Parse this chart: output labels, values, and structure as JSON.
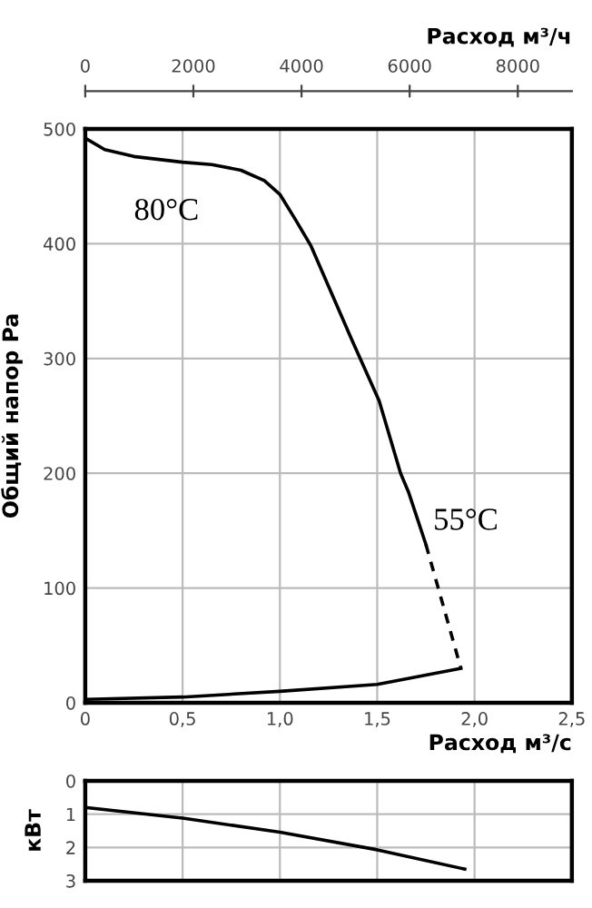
{
  "chart_data": [
    {
      "type": "line",
      "xlabel": "Расход м³/с",
      "ylabel": "Общий напор Pa",
      "x2label": "Расход м³/ч",
      "xlim": [
        0,
        2.5
      ],
      "xticks": [
        0,
        {
          "value": 0.5,
          "label": "0,5"
        },
        {
          "value": 1.0,
          "label": "1,0"
        },
        {
          "value": 1.5,
          "label": "1,5"
        },
        {
          "value": 2.0,
          "label": "2,0"
        },
        {
          "value": 2.5,
          "label": "2,5"
        }
      ],
      "x2lim": [
        0,
        9000
      ],
      "x2ticks": [
        0,
        2000,
        4000,
        6000,
        8000
      ],
      "ylim": [
        0,
        500
      ],
      "yticks": [
        0,
        100,
        200,
        300,
        400,
        500
      ],
      "grid": true,
      "series": [
        {
          "color": "#000000",
          "line_style": "solid",
          "x": [
            0,
            0.1,
            0.25,
            0.5,
            0.65,
            0.8,
            0.92,
            1.0,
            1.08,
            1.16,
            1.37,
            1.51,
            1.62,
            1.66,
            1.75
          ],
          "values": [
            492,
            482,
            476,
            471,
            469,
            464,
            455,
            443,
            421,
            398,
            316,
            263,
            200,
            184,
            138
          ]
        },
        {
          "color": "#000000",
          "line_style": "dashed",
          "x": [
            1.75,
            1.93
          ],
          "values": [
            138,
            30
          ]
        },
        {
          "color": "#000000",
          "line_style": "solid",
          "x": [
            0,
            0.5,
            1.0,
            1.5,
            1.93
          ],
          "values": [
            3,
            5,
            10,
            16,
            30
          ]
        }
      ],
      "annotations": [
        "80°C",
        "55°C"
      ]
    },
    {
      "type": "line",
      "ylabel": "кВт",
      "xlim": [
        0,
        2.5
      ],
      "xticks": [
        0,
        0.5,
        1.0,
        1.5,
        2.0,
        2.5
      ],
      "ylim": [
        3,
        0
      ],
      "yticks": [
        0,
        1,
        2,
        3
      ],
      "grid": true,
      "tick_labels": "y",
      "series": [
        {
          "color": "#000000",
          "line_style": "solid",
          "x": [
            0,
            0.5,
            1.0,
            1.5,
            1.95
          ],
          "values": [
            0.8,
            1.12,
            1.54,
            2.07,
            2.65
          ]
        }
      ]
    }
  ]
}
